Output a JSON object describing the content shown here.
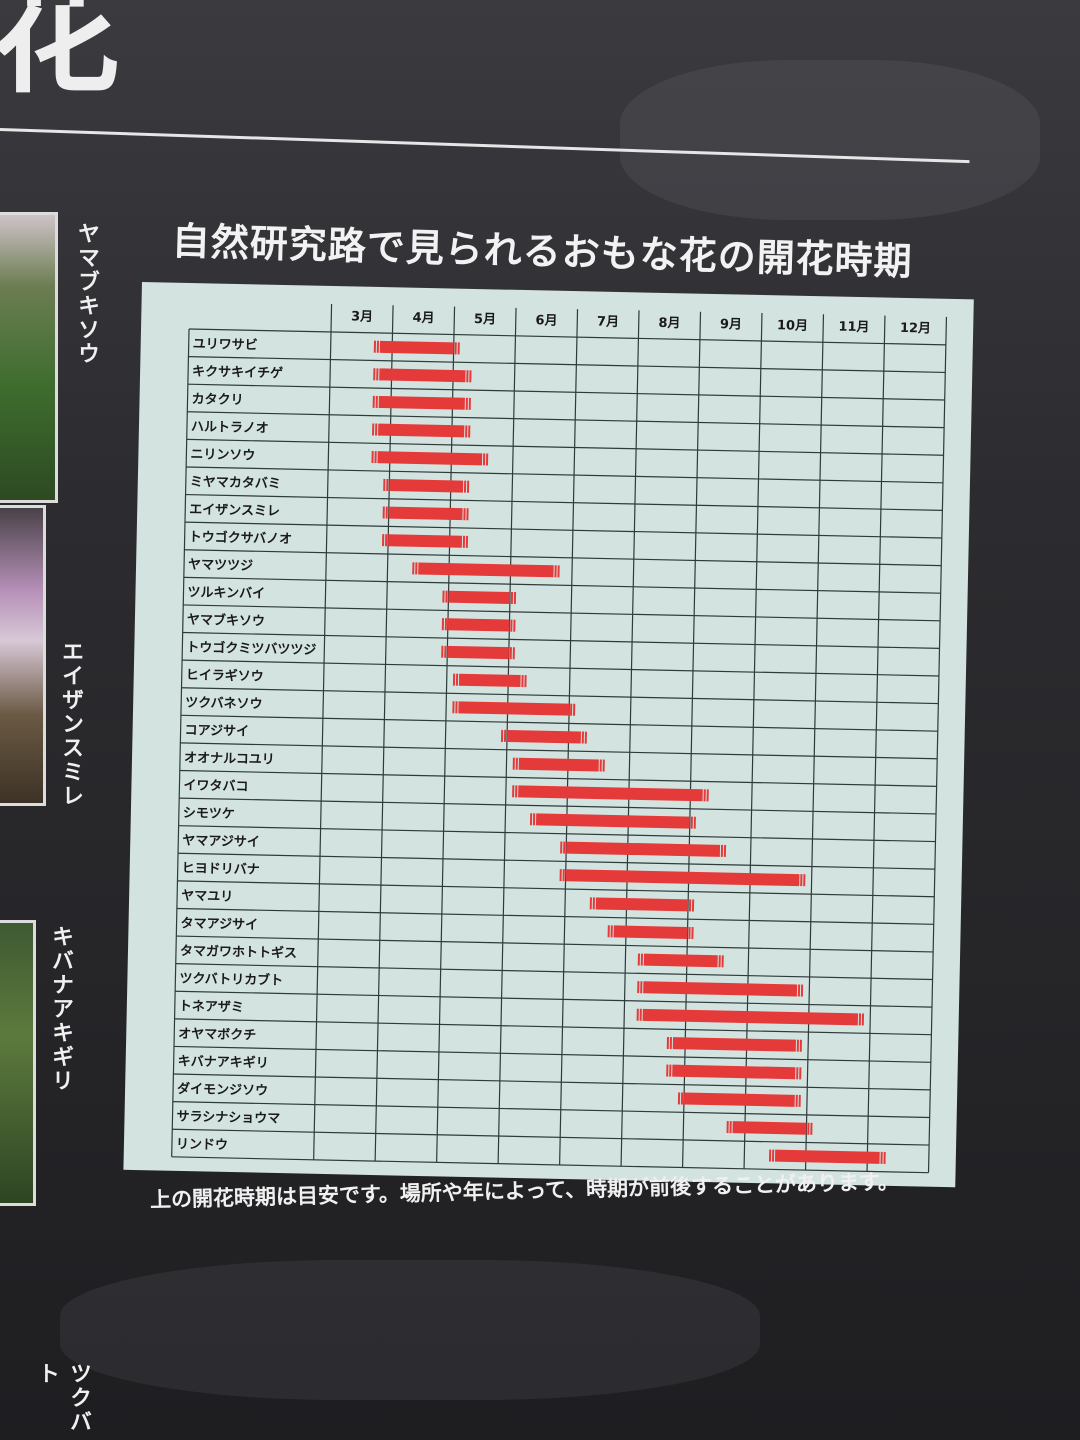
{
  "sign": {
    "big_heading_fragment": "花",
    "title": "自然研究路で見られるおもな花の開花時期",
    "note": "上の開花時期は目安です。場所や年によって、時期が前後することがあります。",
    "side_labels": [
      "ヤマブキソウ",
      "エイザンスミレ",
      "キバナアキギリ",
      "ツクバト"
    ]
  },
  "colors": {
    "bar": "#e53a3a",
    "chart_bg": "#d3e3e0",
    "board": "#2c2c30",
    "grid": "#2f3a3a"
  },
  "chart_data": {
    "type": "gantt",
    "months": [
      "3月",
      "4月",
      "5月",
      "6月",
      "7月",
      "8月",
      "9月",
      "10月",
      "11月",
      "12月"
    ],
    "x_range": [
      3,
      13
    ],
    "rows": [
      {
        "name": "ユリワサビ",
        "start": 3.8,
        "end": 5.0
      },
      {
        "name": "キクサキイチゲ",
        "start": 3.8,
        "end": 5.2
      },
      {
        "name": "カタクリ",
        "start": 3.8,
        "end": 5.2
      },
      {
        "name": "ハルトラノオ",
        "start": 3.8,
        "end": 5.2
      },
      {
        "name": "ニリンソウ",
        "start": 3.8,
        "end": 5.5
      },
      {
        "name": "ミヤマカタバミ",
        "start": 4.0,
        "end": 5.2
      },
      {
        "name": "エイザンスミレ",
        "start": 4.0,
        "end": 5.2
      },
      {
        "name": "トウゴクサバノオ",
        "start": 4.0,
        "end": 5.2
      },
      {
        "name": "ヤマツツジ",
        "start": 4.5,
        "end": 6.7
      },
      {
        "name": "ツルキンバイ",
        "start": 5.0,
        "end": 6.0
      },
      {
        "name": "ヤマブキソウ",
        "start": 5.0,
        "end": 6.0
      },
      {
        "name": "トウゴクミツバツツジ",
        "start": 5.0,
        "end": 6.0
      },
      {
        "name": "ヒイラギソウ",
        "start": 5.2,
        "end": 6.2
      },
      {
        "name": "ツクバネソウ",
        "start": 5.2,
        "end": 7.0
      },
      {
        "name": "コアジサイ",
        "start": 6.0,
        "end": 7.2
      },
      {
        "name": "オオナルコユリ",
        "start": 6.2,
        "end": 7.5
      },
      {
        "name": "イワタバコ",
        "start": 6.2,
        "end": 9.2
      },
      {
        "name": "シモツケ",
        "start": 6.5,
        "end": 9.0
      },
      {
        "name": "ヤマアジサイ",
        "start": 7.0,
        "end": 9.5
      },
      {
        "name": "ヒヨドリバナ",
        "start": 7.0,
        "end": 10.8
      },
      {
        "name": "ヤマユリ",
        "start": 7.5,
        "end": 9.0
      },
      {
        "name": "タマアジサイ",
        "start": 7.8,
        "end": 9.0
      },
      {
        "name": "タマガワホトトギス",
        "start": 8.3,
        "end": 9.5
      },
      {
        "name": "ツクバトリカブト",
        "start": 8.3,
        "end": 10.8
      },
      {
        "name": "トネアザミ",
        "start": 8.3,
        "end": 11.8
      },
      {
        "name": "オヤマボクチ",
        "start": 8.8,
        "end": 10.8
      },
      {
        "name": "キバナアキギリ",
        "start": 8.8,
        "end": 10.8
      },
      {
        "name": "ダイモンジソウ",
        "start": 9.0,
        "end": 10.8
      },
      {
        "name": "サラシナショウマ",
        "start": 9.8,
        "end": 11.0
      },
      {
        "name": "リンドウ",
        "start": 10.5,
        "end": 12.2
      }
    ]
  }
}
